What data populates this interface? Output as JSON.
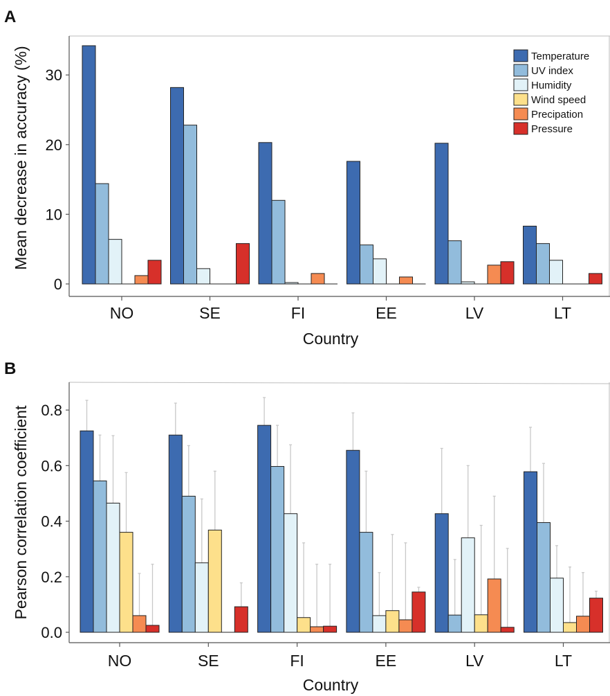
{
  "colors": {
    "Temperature": "#3d6bb0",
    "UV index": "#92bcdc",
    "Humidity": "#e2f2f8",
    "Wind speed": "#fde08b",
    "Precipation": "#f58b52",
    "Pressure": "#d7302a",
    "errorbar": "#c8c8c8"
  },
  "chart_data": [
    {
      "panel_label": "A",
      "type": "bar",
      "xlabel": "Country",
      "ylabel": "Mean decrease in accuracy (%)",
      "ylim": [
        0,
        34
      ],
      "yticks": [
        0,
        10,
        20,
        30
      ],
      "categories": [
        "NO",
        "SE",
        "FI",
        "EE",
        "LV",
        "LT"
      ],
      "legend": {
        "position": "top-right",
        "entries": [
          "Temperature",
          "UV index",
          "Humidity",
          "Wind speed",
          "Precipation",
          "Pressure"
        ]
      },
      "series": [
        {
          "name": "Temperature",
          "values": [
            34.2,
            28.2,
            20.3,
            17.6,
            20.2,
            8.3
          ]
        },
        {
          "name": "UV index",
          "values": [
            14.4,
            22.8,
            12.0,
            5.6,
            6.2,
            5.8
          ]
        },
        {
          "name": "Humidity",
          "values": [
            6.4,
            2.2,
            0.2,
            3.6,
            0.3,
            3.4
          ]
        },
        {
          "name": "Wind speed",
          "values": [
            0,
            0,
            0,
            0,
            0,
            0
          ]
        },
        {
          "name": "Precipation",
          "values": [
            1.2,
            0,
            1.5,
            1.0,
            2.7,
            0
          ]
        },
        {
          "name": "Pressure",
          "values": [
            3.4,
            5.8,
            0,
            0,
            3.2,
            1.5
          ]
        }
      ]
    },
    {
      "panel_label": "B",
      "type": "bar",
      "xlabel": "Country",
      "ylabel": "Pearson correlation coefficient",
      "ylim": [
        0,
        0.89
      ],
      "yticks": [
        0.0,
        0.2,
        0.4,
        0.6,
        0.8
      ],
      "ytick_labels": [
        "0.0",
        "0.2",
        "0.4",
        "0.6",
        "0.8"
      ],
      "categories": [
        "NO",
        "SE",
        "FI",
        "EE",
        "LV",
        "LT"
      ],
      "series": [
        {
          "name": "Temperature",
          "values": [
            0.725,
            0.71,
            0.745,
            0.655,
            0.427,
            0.578
          ],
          "error_upper": [
            0.835,
            0.825,
            0.845,
            0.79,
            0.662,
            0.738
          ]
        },
        {
          "name": "UV index",
          "values": [
            0.545,
            0.49,
            0.597,
            0.36,
            0.062,
            0.395
          ],
          "error_upper": [
            0.71,
            0.672,
            0.745,
            0.58,
            0.262,
            0.608
          ]
        },
        {
          "name": "Humidity",
          "values": [
            0.465,
            0.25,
            0.427,
            0.06,
            0.34,
            0.195
          ],
          "error_upper": [
            0.708,
            0.48,
            0.675,
            0.215,
            0.6,
            0.312
          ]
        },
        {
          "name": "Wind speed",
          "values": [
            0.36,
            0.368,
            0.053,
            0.078,
            0.063,
            0.035
          ],
          "error_upper": [
            0.575,
            0.58,
            0.322,
            0.352,
            0.385,
            0.235
          ]
        },
        {
          "name": "Precipation",
          "values": [
            0.06,
            0,
            0.02,
            0.045,
            0.192,
            0.058
          ],
          "error_upper": [
            0.212,
            0,
            0.245,
            0.322,
            0.49,
            0.215
          ]
        },
        {
          "name": "Pressure",
          "values": [
            0.025,
            0.092,
            0.022,
            0.145,
            0.018,
            0.123
          ],
          "error_upper": [
            0.245,
            0.178,
            0.245,
            0.162,
            0.302,
            0.148
          ]
        }
      ]
    }
  ]
}
